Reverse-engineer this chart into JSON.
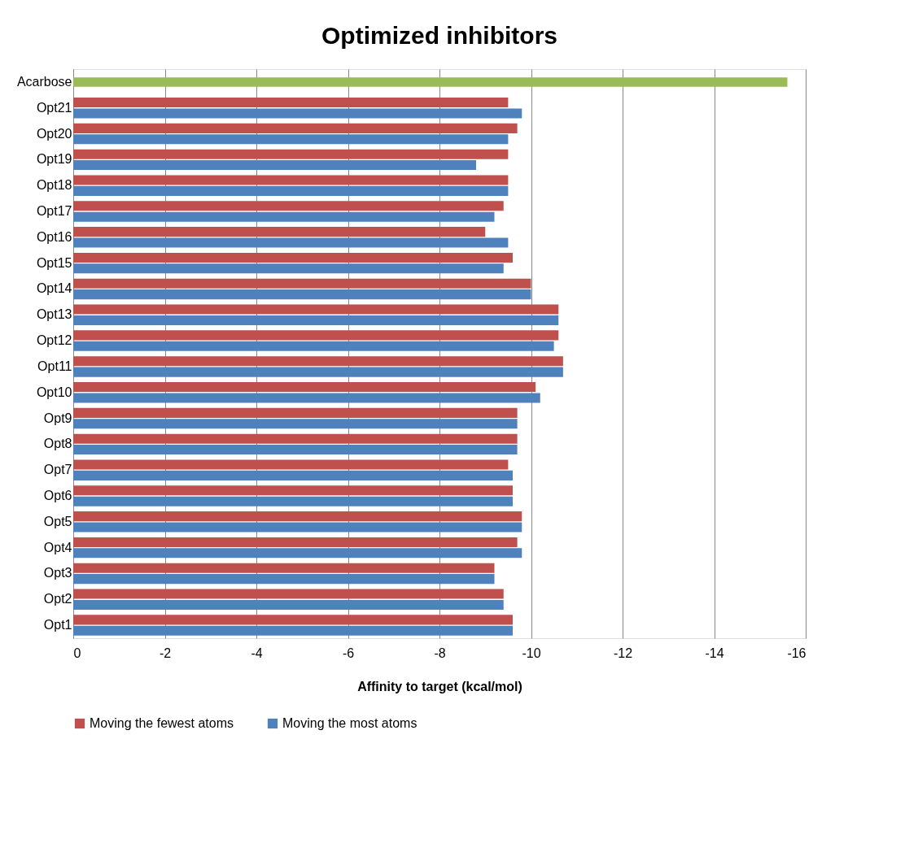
{
  "chart_data": {
    "type": "bar",
    "orientation": "horizontal",
    "title": "Optimized inhibitors",
    "xlabel": "Affinity to target (kcal/mol)",
    "categories": [
      "Acarbose",
      "Opt21",
      "Opt20",
      "Opt19",
      "Opt18",
      "Opt17",
      "Opt16",
      "Opt15",
      "Opt14",
      "Opt13",
      "Opt12",
      "Opt11",
      "Opt10",
      "Opt9",
      "Opt8",
      "Opt7",
      "Opt6",
      "Opt5",
      "Opt4",
      "Opt3",
      "Opt2",
      "Opt1"
    ],
    "series": [
      {
        "name": "Moving the fewest atoms",
        "color": "#c0504d",
        "values": [
          null,
          -9.5,
          -9.7,
          -9.5,
          -9.5,
          -9.4,
          -9.0,
          -9.6,
          -10.0,
          -10.6,
          -10.6,
          -10.7,
          -10.1,
          -9.7,
          -9.7,
          -9.5,
          -9.6,
          -9.8,
          -9.7,
          -9.2,
          -9.4,
          -9.6
        ]
      },
      {
        "name": "Moving the most atoms",
        "color": "#4f81bd",
        "values": [
          null,
          -9.8,
          -9.5,
          -8.8,
          -9.5,
          -9.2,
          -9.5,
          -9.4,
          -10.0,
          -10.6,
          -10.5,
          -10.7,
          -10.2,
          -9.7,
          -9.7,
          -9.6,
          -9.6,
          -9.8,
          -9.8,
          -9.2,
          -9.4,
          -9.6
        ]
      },
      {
        "color": "#9bbb59",
        "values": [
          -15.6,
          null,
          null,
          null,
          null,
          null,
          null,
          null,
          null,
          null,
          null,
          null,
          null,
          null,
          null,
          null,
          null,
          null,
          null,
          null,
          null,
          null
        ]
      }
    ],
    "xlim": [
      0,
      -16
    ],
    "xticks": [
      0,
      -2,
      -4,
      -6,
      -8,
      -10,
      -12,
      -14,
      -16
    ],
    "grid": "x",
    "legend": "bottom"
  }
}
